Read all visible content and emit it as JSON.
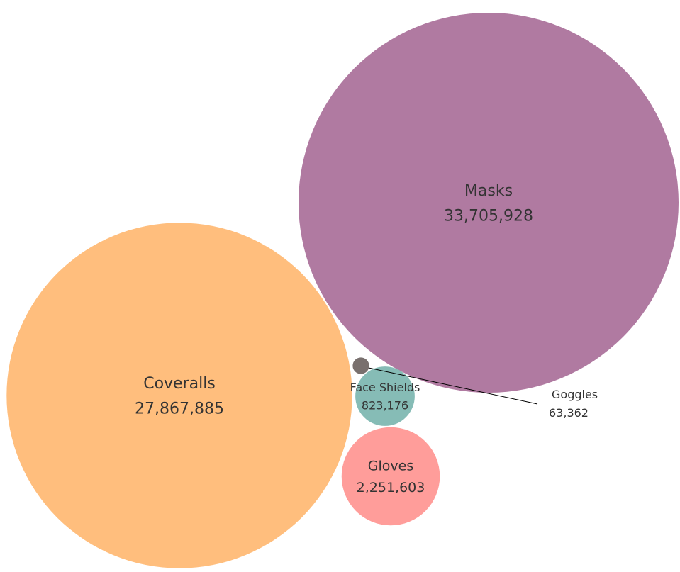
{
  "chart_data": {
    "type": "bubble",
    "title": "",
    "series": [
      {
        "name": "Masks",
        "value": 33705928,
        "value_label": "33,705,928",
        "color": "#B07AA1"
      },
      {
        "name": "Coveralls",
        "value": 27867885,
        "value_label": "27,867,885",
        "color": "#FFBE7D"
      },
      {
        "name": "Gloves",
        "value": 2251603,
        "value_label": "2,251,603",
        "color": "#FF9D9A"
      },
      {
        "name": "Face Shields",
        "value": 823176,
        "value_label": "823,176",
        "color": "#86BCB6"
      },
      {
        "name": "Goggles",
        "value": 63362,
        "value_label": "63,362",
        "color": "#79706E"
      }
    ]
  }
}
